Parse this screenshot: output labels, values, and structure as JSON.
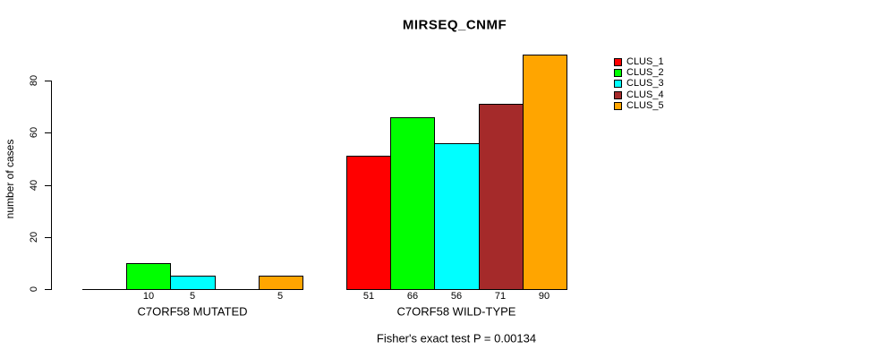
{
  "title": "MIRSEQ_CNMF",
  "chart_data": {
    "type": "bar",
    "title": "MIRSEQ_CNMF",
    "xlabel": "",
    "ylabel": "number of cases",
    "ylim": [
      0,
      90
    ],
    "yticks": [
      0,
      20,
      40,
      60,
      80
    ],
    "grid": false,
    "background": "#FFFFFF",
    "bar_border_color": "#000000",
    "legend_position": "right-outside",
    "categories": [
      "C7ORF58 MUTATED",
      "C7ORF58 WILD-TYPE"
    ],
    "series": [
      {
        "name": "CLUS_1",
        "color": "#FF0000",
        "values": [
          0,
          51
        ]
      },
      {
        "name": "CLUS_2",
        "color": "#00FF00",
        "values": [
          10,
          66
        ]
      },
      {
        "name": "CLUS_3",
        "color": "#00FFFF",
        "values": [
          5,
          56
        ]
      },
      {
        "name": "CLUS_4",
        "color": "#A52A2A",
        "values": [
          0,
          71
        ]
      },
      {
        "name": "CLUS_5",
        "color": "#FFA500",
        "values": [
          5,
          90
        ]
      }
    ],
    "value_labels_shown": true,
    "zero_value_labels_hidden": true,
    "annotation": "Fisher's exact test P = 0.00134"
  }
}
